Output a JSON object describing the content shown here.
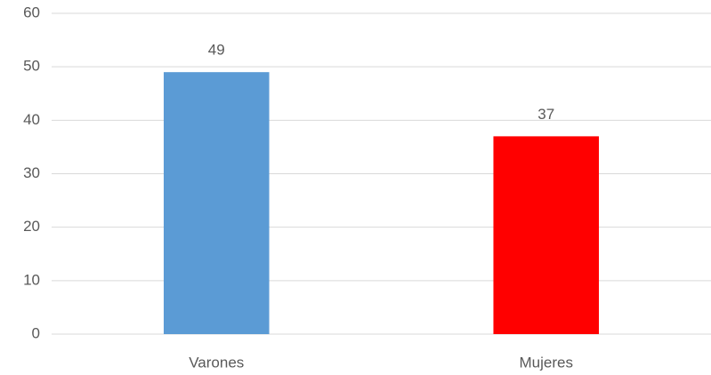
{
  "chart_data": {
    "type": "bar",
    "categories": [
      "Varones",
      "Mujeres"
    ],
    "values": [
      49,
      37
    ],
    "colors": [
      "#5b9bd5",
      "#ff0000"
    ],
    "ylim": [
      0,
      60
    ],
    "yticks": [
      0,
      10,
      20,
      30,
      40,
      50,
      60
    ],
    "grid": true,
    "data_labels": true
  }
}
